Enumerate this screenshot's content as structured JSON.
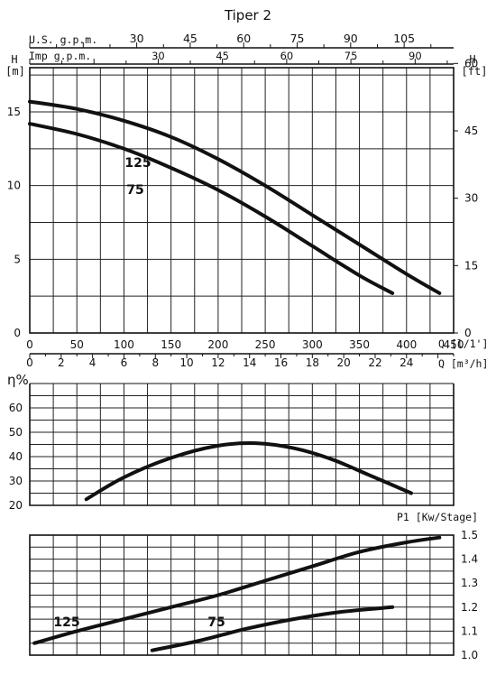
{
  "title": "Tiper 2",
  "head": {
    "title": "",
    "usgpm_label": "U.S. g.p.m.",
    "usgpm_ticks": [
      30,
      45,
      60,
      75,
      90,
      105
    ],
    "impgpm_label": "Imp g.p.m.",
    "impgpm_ticks": [
      30,
      45,
      60,
      75,
      90
    ],
    "ylabel": "H",
    "yunit": "[m]",
    "yticks": [
      0,
      5,
      10,
      15
    ],
    "ylabel_right": "H",
    "yunit_right": "[ft]",
    "yticks_right": [
      0,
      15,
      30,
      45,
      60
    ],
    "xticks_q": [
      0,
      50,
      100,
      150,
      200,
      250,
      300,
      350,
      400,
      450
    ],
    "xlabel_q": "Q [l/1']",
    "xticks_m3h": [
      0,
      2,
      4,
      6,
      8,
      10,
      12,
      14,
      16,
      18,
      20,
      22,
      24
    ],
    "xlabel_m3h": "Q [m³/h]"
  },
  "chart_data": [
    {
      "type": "line",
      "title": "",
      "xlabel": "Q [l/1']",
      "ylabel": "H [m]",
      "xlim": [
        0,
        450
      ],
      "ylim": [
        0,
        18
      ],
      "grid": true,
      "series": [
        {
          "name": "125",
          "x": [
            0,
            50,
            100,
            150,
            200,
            250,
            300,
            350,
            400,
            435
          ],
          "y": [
            15.7,
            15.2,
            14.4,
            13.3,
            11.8,
            10.0,
            8.0,
            6.0,
            4.0,
            2.7
          ]
        },
        {
          "name": "75",
          "x": [
            0,
            50,
            100,
            150,
            200,
            250,
            300,
            350,
            385
          ],
          "y": [
            14.2,
            13.5,
            12.5,
            11.2,
            9.7,
            7.9,
            5.9,
            3.9,
            2.7
          ]
        }
      ]
    },
    {
      "type": "line",
      "title": "",
      "xlabel": "",
      "ylabel": "η%",
      "xlim": [
        0,
        450
      ],
      "ylim": [
        20,
        70
      ],
      "yticks": [
        20,
        30,
        40,
        50,
        60
      ],
      "grid": true,
      "series": [
        {
          "name": "",
          "x": [
            60,
            100,
            150,
            200,
            240,
            280,
            320,
            360,
            405
          ],
          "y": [
            22.5,
            31.5,
            39.5,
            44.5,
            45.5,
            43.5,
            39.0,
            32.5,
            25.0
          ]
        }
      ]
    },
    {
      "type": "line",
      "title": "",
      "xlabel": "",
      "ylabel": "P1 [Kw/Stage]",
      "xlim": [
        0,
        450
      ],
      "ylim": [
        1.0,
        1.5
      ],
      "yticks": [
        1.0,
        1.1,
        1.2,
        1.3,
        1.4,
        1.5
      ],
      "grid": true,
      "series": [
        {
          "name": "125",
          "x": [
            5,
            50,
            100,
            150,
            200,
            250,
            300,
            350,
            400,
            435
          ],
          "y": [
            1.05,
            1.1,
            1.15,
            1.2,
            1.25,
            1.31,
            1.37,
            1.43,
            1.47,
            1.49
          ]
        },
        {
          "name": "75",
          "x": [
            130,
            180,
            230,
            280,
            330,
            385
          ],
          "y": [
            1.02,
            1.06,
            1.11,
            1.15,
            1.18,
            1.2
          ]
        }
      ]
    }
  ]
}
